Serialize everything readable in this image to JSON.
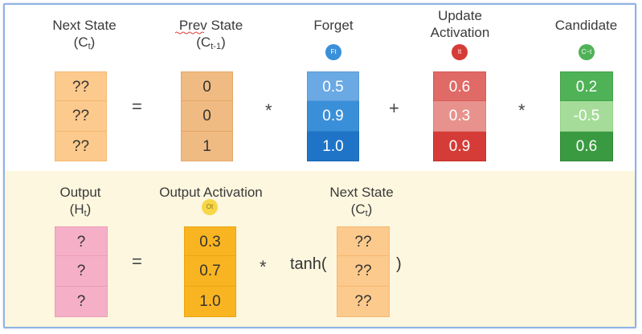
{
  "top": {
    "next_state": {
      "line1": "Next State",
      "line2_base": "(C",
      "line2_sub": "t",
      "line2_end": ")",
      "cells": [
        "??",
        "??",
        "??"
      ]
    },
    "prev_state": {
      "line1": "Prev State",
      "line2_base": "(C",
      "line2_sub": "t-1",
      "line2_end": ")",
      "cells": [
        "0",
        "0",
        "1"
      ]
    },
    "forget": {
      "label": "Forget",
      "badge": "Ft",
      "cells": [
        "0.5",
        "0.9",
        "1.0"
      ]
    },
    "update": {
      "line1": "Update",
      "line2": "Activation",
      "badge": "It",
      "cells": [
        "0.6",
        "0.3",
        "0.9"
      ]
    },
    "candidate": {
      "label": "Candidate",
      "badge": "C~t",
      "cells": [
        "0.2",
        "-0.5",
        "0.6"
      ]
    },
    "ops": {
      "equals": "=",
      "times1": "*",
      "plus": "+",
      "times2": "*"
    }
  },
  "bottom": {
    "output": {
      "line1": "Output",
      "line2_base": "(H",
      "line2_sub": "t",
      "line2_end": ")",
      "cells": [
        "?",
        "?",
        "?"
      ]
    },
    "output_activation": {
      "label": "Output Activation",
      "badge": "Ot",
      "cells": [
        "0.3",
        "0.7",
        "1.0"
      ]
    },
    "next_state": {
      "line1": "Next State",
      "line2_base": "(C",
      "line2_sub": "t",
      "line2_end": ")",
      "cells": [
        "??",
        "??",
        "??"
      ]
    },
    "ops": {
      "equals": "=",
      "times": "*",
      "tanh_open": "tanh(",
      "tanh_close": ")"
    }
  },
  "colors": {
    "orange_light": "#fcca8c",
    "orange_mid": "#f0bb82",
    "blue1": "#6aa9e4",
    "blue2": "#3a8fd9",
    "blue3": "#1f74c7",
    "red1": "#e06a66",
    "red2": "#e8928d",
    "red3": "#d53c37",
    "green1": "#4fb257",
    "green2": "#a6dc9a",
    "green3": "#3a9a42",
    "pink": "#f5b0c8",
    "yellow": "#f9b521",
    "yellow_badge": "#f7d647",
    "bottom_bg": "#fdf7df",
    "frame": "#8fb2e2"
  }
}
